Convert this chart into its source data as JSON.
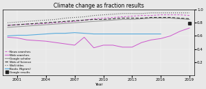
{
  "title": "Climate change as fraction results",
  "xlabel": "Year",
  "years": [
    2000,
    2001,
    2002,
    2003,
    2004,
    2005,
    2006,
    2007,
    2008,
    2009,
    2010,
    2011,
    2012,
    2013,
    2014,
    2015,
    2016,
    2017,
    2018,
    2019
  ],
  "news_searches": [
    0.76,
    0.77,
    0.78,
    0.78,
    0.79,
    0.8,
    0.81,
    0.82,
    0.84,
    0.86,
    0.87,
    0.88,
    0.89,
    0.9,
    0.91,
    0.91,
    0.92,
    0.92,
    0.92,
    0.91
  ],
  "web_searches": [
    0.58,
    0.57,
    0.54,
    0.53,
    0.52,
    0.5,
    0.48,
    0.46,
    0.58,
    0.42,
    0.46,
    0.46,
    0.43,
    0.43,
    0.5,
    0.54,
    0.56,
    0.6,
    0.67,
    0.72
  ],
  "google_scholar": [
    0.73,
    0.74,
    0.75,
    0.76,
    0.77,
    0.78,
    0.79,
    0.8,
    0.81,
    0.82,
    0.83,
    0.84,
    0.85,
    0.85,
    0.86,
    0.87,
    0.87,
    0.87,
    0.86,
    0.85
  ],
  "wos": [
    0.76,
    0.77,
    0.78,
    0.79,
    0.8,
    0.81,
    0.82,
    0.83,
    0.84,
    0.85,
    0.85,
    0.86,
    0.87,
    0.87,
    0.87,
    0.88,
    0.88,
    0.88,
    0.87,
    0.86
  ],
  "wos_titles": [
    0.8,
    0.81,
    0.82,
    0.83,
    0.84,
    0.85,
    0.87,
    0.88,
    0.89,
    0.91,
    0.92,
    0.93,
    0.94,
    0.94,
    0.94,
    0.95,
    0.95,
    0.95,
    0.95,
    0.95
  ],
  "books_ngrams": [
    0.6,
    0.61,
    0.61,
    0.62,
    0.63,
    0.64,
    0.64,
    0.65,
    0.64,
    0.63,
    0.63,
    0.63,
    0.63,
    0.63,
    0.63,
    0.63,
    0.63,
    null,
    null,
    null
  ],
  "google_results_year": 2019,
  "google_results_value": 0.79,
  "ylim": [
    0.0,
    1.0
  ],
  "yticks": [
    0.2,
    0.4,
    0.6,
    0.8,
    1.0
  ],
  "xticks": [
    2001,
    2004,
    2007,
    2010,
    2013,
    2016,
    2019
  ],
  "news_color": "#cc55cc",
  "web_color": "#cc55cc",
  "scholar_color": "#999999",
  "wos_color": "#333333",
  "wos_titles_color": "#555555",
  "books_color": "#55aadd",
  "google_marker_color": "#222222",
  "bg_color": "#e8e8e8",
  "figsize": [
    3.0,
    1.3
  ],
  "dpi": 100
}
